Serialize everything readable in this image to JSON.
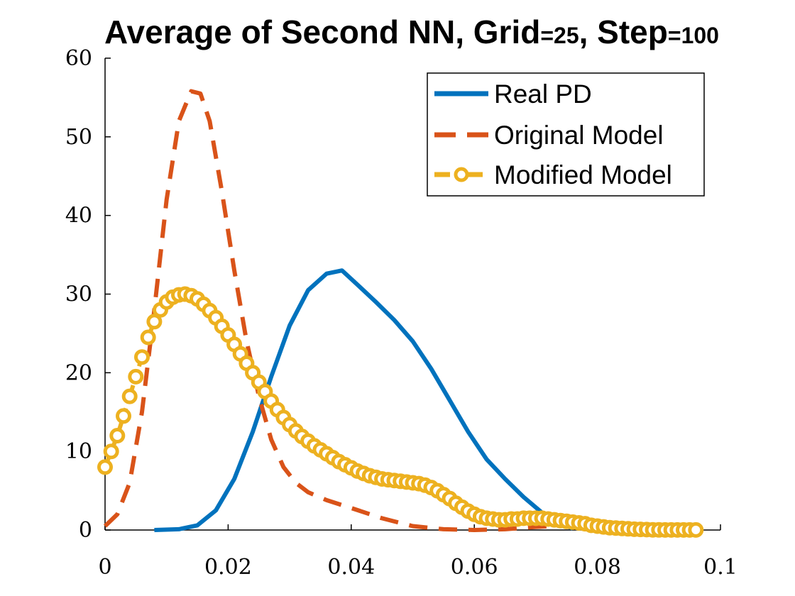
{
  "chart_data": {
    "type": "line",
    "title": {
      "part1": "Average of Second NN, Grid",
      "eq1": "=25",
      "part2": ", Step",
      "eq2": "=100"
    },
    "xlabel": "",
    "ylabel": "",
    "xlim": [
      0,
      0.1
    ],
    "ylim": [
      0,
      60
    ],
    "x_ticks": [
      0,
      0.02,
      0.04,
      0.06,
      0.08,
      0.1
    ],
    "x_tick_labels": [
      "0",
      "0.02",
      "0.04",
      "0.06",
      "0.08",
      "0.1"
    ],
    "y_ticks": [
      0,
      10,
      20,
      30,
      40,
      50,
      60
    ],
    "y_tick_labels": [
      "0",
      "10",
      "20",
      "30",
      "40",
      "50",
      "60"
    ],
    "grid": false,
    "legend_position": "top-right",
    "series": [
      {
        "name": "Real PD",
        "color": "#0072BD",
        "style": "solid",
        "x": [
          0.008,
          0.012,
          0.015,
          0.018,
          0.021,
          0.024,
          0.027,
          0.03,
          0.033,
          0.036,
          0.0385,
          0.041,
          0.044,
          0.047,
          0.05,
          0.053,
          0.056,
          0.059,
          0.062,
          0.065,
          0.068,
          0.071,
          0.074,
          0.076
        ],
        "y": [
          0,
          0.1,
          0.6,
          2.5,
          6.5,
          12.5,
          19.5,
          26,
          30.5,
          32.6,
          33,
          31.2,
          29,
          26.7,
          24,
          20.5,
          16.5,
          12.5,
          9,
          6.5,
          4.2,
          2.2,
          0.8,
          0.2
        ]
      },
      {
        "name": "Original Model",
        "color": "#D95319",
        "style": "dashed",
        "x": [
          0,
          0.002,
          0.004,
          0.006,
          0.008,
          0.01,
          0.012,
          0.014,
          0.0155,
          0.017,
          0.019,
          0.021,
          0.023,
          0.025,
          0.027,
          0.029,
          0.031,
          0.033,
          0.036,
          0.04,
          0.045,
          0.05,
          0.055,
          0.06,
          0.065,
          0.07,
          0.075,
          0.078
        ],
        "y": [
          0.5,
          2,
          6,
          15,
          28,
          42,
          52,
          55.8,
          55.5,
          52,
          43,
          33,
          24,
          17,
          11.5,
          8,
          6,
          4.8,
          3.8,
          2.8,
          1.5,
          0.5,
          0.1,
          0,
          0.1,
          0.4,
          0.6,
          0.3
        ]
      },
      {
        "name": "Modified Model",
        "color": "#EDB120",
        "style": "dash-dot",
        "marker": "circle",
        "x": [
          0,
          0.001,
          0.002,
          0.003,
          0.004,
          0.005,
          0.006,
          0.007,
          0.008,
          0.009,
          0.01,
          0.011,
          0.012,
          0.013,
          0.014,
          0.015,
          0.016,
          0.017,
          0.018,
          0.019,
          0.02,
          0.021,
          0.022,
          0.023,
          0.024,
          0.025,
          0.026,
          0.027,
          0.028,
          0.029,
          0.03,
          0.031,
          0.032,
          0.033,
          0.034,
          0.035,
          0.036,
          0.037,
          0.038,
          0.039,
          0.04,
          0.041,
          0.042,
          0.043,
          0.044,
          0.045,
          0.046,
          0.047,
          0.048,
          0.049,
          0.05,
          0.051,
          0.052,
          0.053,
          0.054,
          0.055,
          0.056,
          0.057,
          0.058,
          0.059,
          0.06,
          0.061,
          0.062,
          0.063,
          0.064,
          0.065,
          0.066,
          0.067,
          0.068,
          0.069,
          0.07,
          0.071,
          0.072,
          0.073,
          0.074,
          0.075,
          0.076,
          0.077,
          0.078,
          0.079,
          0.08,
          0.081,
          0.082,
          0.083,
          0.084,
          0.085,
          0.086,
          0.087,
          0.088,
          0.089,
          0.09,
          0.091,
          0.092,
          0.093,
          0.094,
          0.095,
          0.096
        ],
        "y": [
          8,
          10,
          12,
          14.5,
          17,
          19.5,
          22,
          24.5,
          26.5,
          28,
          29,
          29.6,
          29.9,
          30,
          29.8,
          29.4,
          28.7,
          27.9,
          27,
          25.9,
          24.8,
          23.6,
          22.4,
          21.2,
          20,
          18.8,
          17.6,
          16.4,
          15.3,
          14.3,
          13.4,
          12.6,
          11.9,
          11.3,
          10.7,
          10.2,
          9.7,
          9.2,
          8.7,
          8.3,
          7.9,
          7.5,
          7.2,
          6.9,
          6.7,
          6.5,
          6.4,
          6.3,
          6.2,
          6.1,
          6,
          5.9,
          5.7,
          5.4,
          5,
          4.5,
          4,
          3.4,
          2.9,
          2.4,
          2,
          1.7,
          1.5,
          1.4,
          1.3,
          1.3,
          1.4,
          1.4,
          1.5,
          1.5,
          1.5,
          1.5,
          1.4,
          1.3,
          1.2,
          1.1,
          1,
          0.9,
          0.8,
          0.6,
          0.5,
          0.4,
          0.3,
          0.25,
          0.2,
          0.15,
          0.1,
          0.08,
          0.05,
          0.03,
          0.02,
          0.01,
          0.01,
          0.01,
          0.01,
          0.01,
          0.01
        ]
      }
    ]
  }
}
